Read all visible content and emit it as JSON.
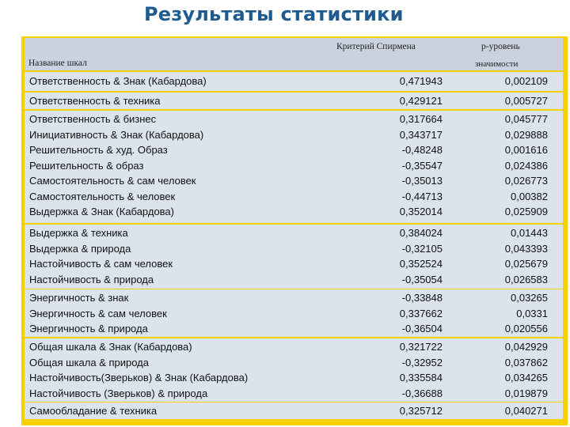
{
  "title": "Результаты статистики",
  "header": {
    "criterion": "Критерий Спирмена",
    "p_level": "p-уровень",
    "scale_names": "Название шкал",
    "significance": "значимости"
  },
  "groups": [
    {
      "rows": [
        {
          "name": "Ответственность  & Знак (Кабардова)",
          "r": "0,471943",
          "p": "0,002109"
        }
      ]
    },
    {
      "rows": [
        {
          "name": "Ответственность & техника",
          "r": "0,429121",
          "p": "0,005727"
        }
      ]
    },
    {
      "rows": [
        {
          "name": "Ответственность  & бизнес",
          "r": "0,317664",
          "p": "0,045777"
        },
        {
          "name": "Инициативность & Знак (Кабардова)",
          "r": "0,343717",
          "p": "0,029888"
        },
        {
          "name": "Решительность  & худ. Образ",
          "r": "-0,48248",
          "p": "0,001616"
        },
        {
          "name": "Решительность  & образ",
          "r": "-0,35547",
          "p": "0,024386"
        },
        {
          "name": "Самостоятельность  & сам человек",
          "r": "-0,35013",
          "p": "0,026773"
        },
        {
          "name": "Самостоятельность  & человек",
          "r": "-0,44713",
          "p": "0,00382"
        },
        {
          "name": "Выдержка & Знак (Кабардова)",
          "r": "0,352014",
          "p": "0,025909"
        }
      ]
    },
    {
      "rows": [
        {
          "name": "Выдержка & техника",
          "r": "0,384024",
          "p": "0,01443"
        },
        {
          "name": "Выдержка & природа",
          "r": "-0,32105",
          "p": "0,043393"
        },
        {
          "name": "Настойчивость  & сам человек",
          "r": "0,352524",
          "p": "0,025679"
        },
        {
          "name": "Настойчивость  & природа",
          "r": "-0,35054",
          "p": "0,026583"
        }
      ]
    },
    {
      "rows": [
        {
          "name": "Энергичность & знак",
          "r": "-0,33848",
          "p": "0,03265"
        },
        {
          "name": "Энергичность & сам человек",
          "r": "0,337662",
          "p": "0,0331"
        },
        {
          "name": "Энергичность & природа",
          "r": "-0,36504",
          "p": "0,020556"
        }
      ]
    },
    {
      "rows": [
        {
          "name": "Общая шкала & Знак (Кабардова)",
          "r": "0,321722",
          "p": "0,042929"
        },
        {
          "name": "Общая шкала & природа",
          "r": "-0,32952",
          "p": "0,037862"
        },
        {
          "name": "Настойчивость(Зверьков) & Знак (Кабардова)",
          "r": "0,335584",
          "p": "0,034265"
        },
        {
          "name": "Настойчивость (Зверьков) & природа",
          "r": "-0,36688",
          "p": "0,019879"
        }
      ]
    },
    {
      "rows": [
        {
          "name": "Самообладание & техника",
          "r": "0,325712",
          "p": "0,040271"
        }
      ]
    }
  ]
}
